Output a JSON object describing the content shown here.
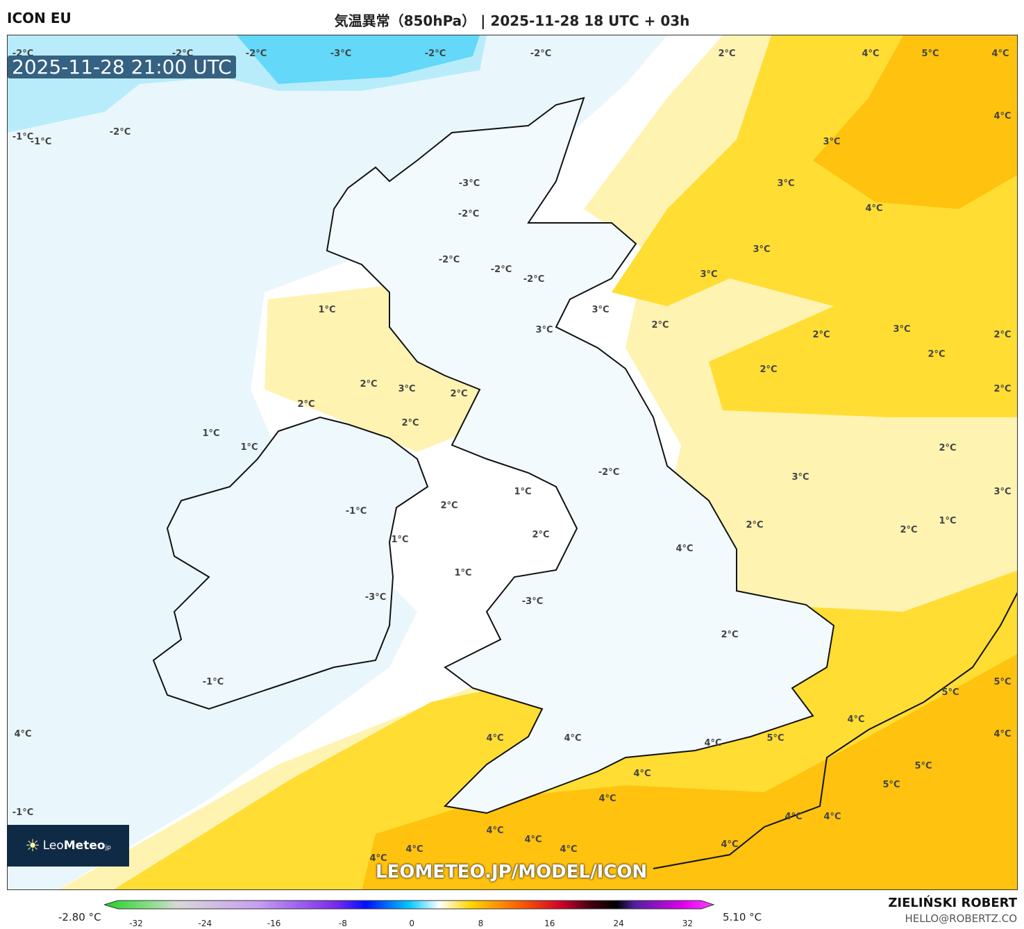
{
  "header": {
    "model": "ICON EU",
    "title": "気温異常（850hPa） | 2025-11-28 18 UTC + 03h"
  },
  "map": {
    "valid_time": "2025-11-28 21:00 UTC",
    "watermark_url": "LEOMETEO.JP/MODEL/ICON",
    "contour_labels": [
      "-2°C",
      "-2°C",
      "-2°C",
      "-3°C",
      "-2°C",
      "-2°C",
      "2°C",
      "4°C",
      "5°C",
      "4°C",
      "4°C",
      "-1°C",
      "-1°C",
      "-2°C",
      "3°C",
      "-3°C",
      "3°C",
      "-2°C",
      "4°C",
      "3°C",
      "-2°C",
      "-2°C",
      "-2°C",
      "3°C",
      "1°C",
      "3°C",
      "3°C",
      "2°C",
      "2°C",
      "3°C",
      "2°C",
      "2°C",
      "2°C",
      "2°C",
      "3°C",
      "2°C",
      "2°C",
      "2°C",
      "2°C",
      "1°C",
      "1°C",
      "2°C",
      "3°C",
      "-2°C",
      "1°C",
      "-1°C",
      "2°C",
      "3°C",
      "1°C",
      "2°C",
      "2°C",
      "2°C",
      "1°C",
      "1°C",
      "-3°C",
      "-3°C",
      "4°C",
      "2°C",
      "5°C",
      "5°C",
      "-1°C",
      "4°C",
      "4°C",
      "4°C",
      "4°C",
      "4°C",
      "5°C",
      "4°C",
      "5°C",
      "5°C",
      "4°C",
      "4°C",
      "4°C",
      "-1°C",
      "4°C",
      "4°C",
      "4°C",
      "4°C",
      "4°C",
      "4°C",
      "4°C"
    ],
    "colors": {
      "cold_strong": "#63d8f8",
      "cold": "#b8ecfb",
      "cold_pale": "#e9f7fd",
      "neutral": "#ffffff",
      "warm_pale": "#fff3b2",
      "warm": "#ffdd33",
      "warm_strong": "#ffc20e"
    }
  },
  "logo": {
    "text_light": "Leo",
    "text_bold": "Meteo",
    "suffix": "jp"
  },
  "colorbar": {
    "min_label": "-2.80 °C",
    "max_label": "5.10 °C",
    "ticks": [
      "-32",
      "-24",
      "-16",
      "-8",
      "0",
      "8",
      "16",
      "24",
      "32"
    ]
  },
  "credits": {
    "author": "ZIELIŃSKI ROBERT",
    "email": "HELLO@ROBERTZ.CO"
  }
}
